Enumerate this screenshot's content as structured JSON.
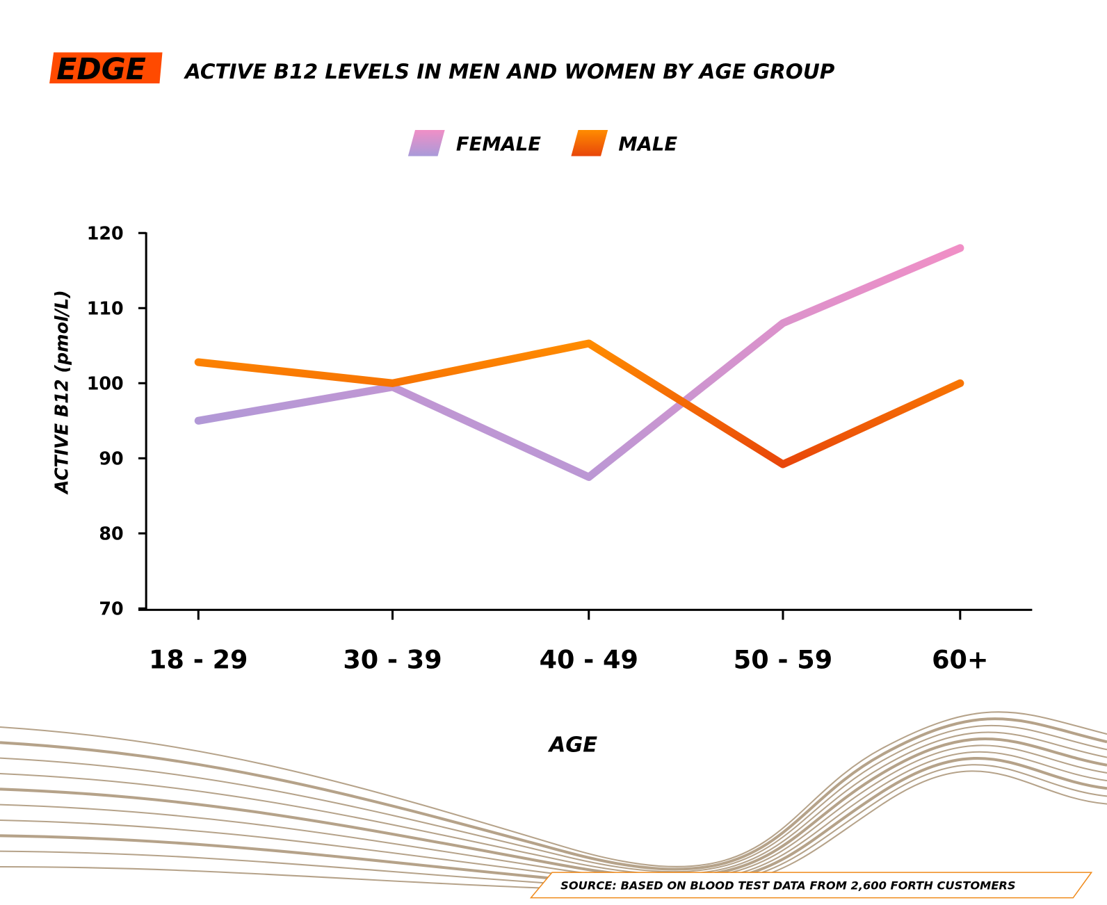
{
  "brand": {
    "logo_text": "EDGE",
    "logo_color": "#ff4a00"
  },
  "chart_data": {
    "type": "line",
    "title": "ACTIVE B12 LEVELS IN MEN AND WOMEN BY AGE GROUP",
    "xlabel": "AGE",
    "ylabel": "ACTIVE B12 (pmol/L)",
    "categories": [
      "18 - 29",
      "30 - 39",
      "40 - 49",
      "50 - 59",
      "60+"
    ],
    "ylim": [
      70,
      120
    ],
    "yticks": [
      120,
      110,
      100,
      90,
      80,
      70
    ],
    "grid": false,
    "legend_position": "top-center",
    "series": [
      {
        "name": "FEMALE",
        "values": [
          95,
          99.5,
          87.5,
          108,
          118
        ],
        "color_start": "#a99ad9",
        "color_end": "#f08fc6"
      },
      {
        "name": "MALE",
        "values": [
          102.8,
          100,
          105.3,
          89.2,
          100
        ],
        "color_start": "#ff8c00",
        "color_end": "#e8460a"
      }
    ]
  },
  "footer": {
    "source": "SOURCE: BASED ON BLOOD TEST DATA FROM 2,600 FORTH CUSTOMERS"
  }
}
